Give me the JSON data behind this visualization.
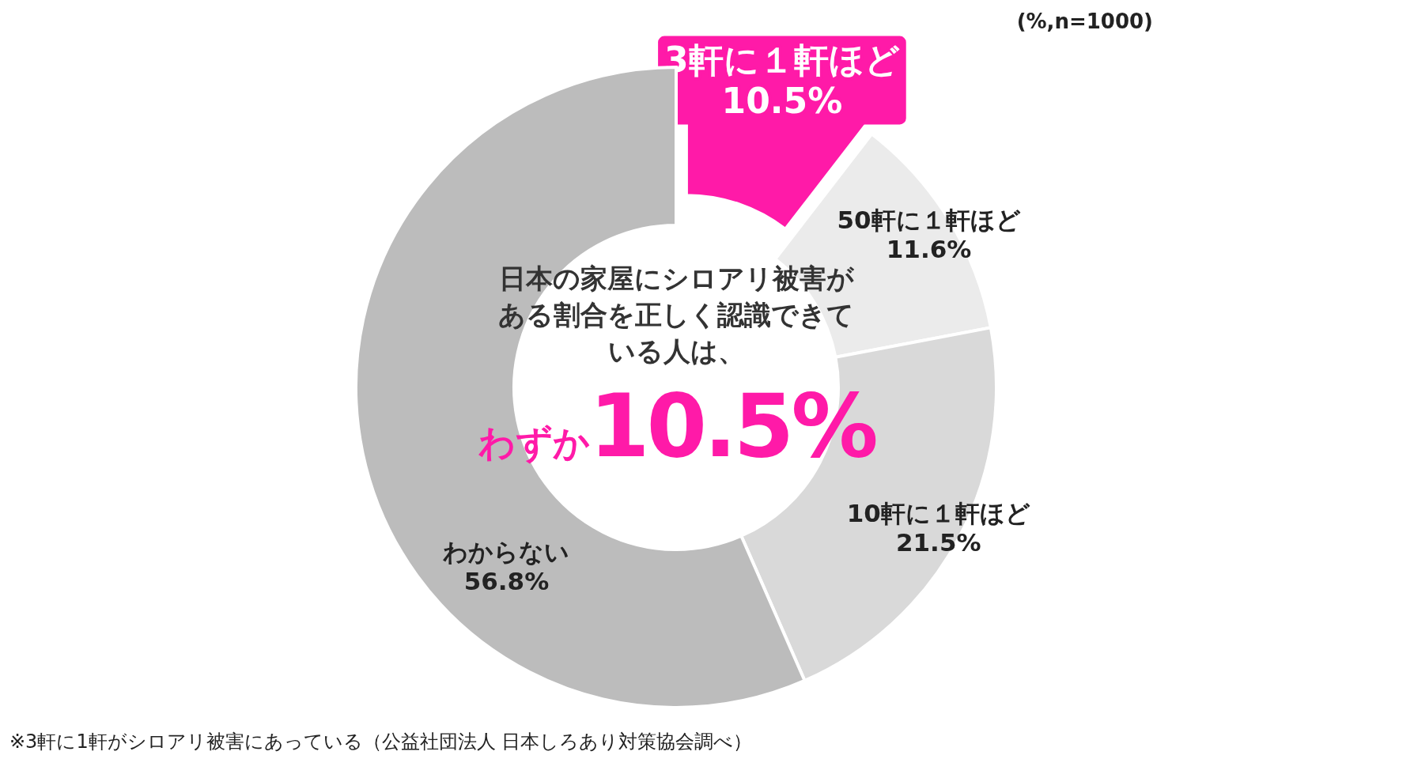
{
  "chart_data": {
    "type": "donut",
    "title": "日本の家屋にシロアリ被害がある割合を正しく認識できている人は、",
    "categories": [
      "3軒に１軒ほど",
      "50軒に１軒ほど",
      "10軒に１軒ほど",
      "わからない"
    ],
    "values": [
      10.5,
      11.6,
      21.5,
      56.8
    ],
    "colors": [
      "#ff1aa8",
      "#ebebeb",
      "#d9d9d9",
      "#bcbcbc"
    ],
    "value_labels": [
      "10.5%",
      "11.6%",
      "21.5%",
      "56.8%"
    ],
    "annotations": [
      "(%,n=1000)",
      "わずか",
      "10.5%",
      "※3軒に1軒がシロアリ被害にあっている（公益社団法人 日本しろあり対策協会調べ）"
    ]
  }
}
